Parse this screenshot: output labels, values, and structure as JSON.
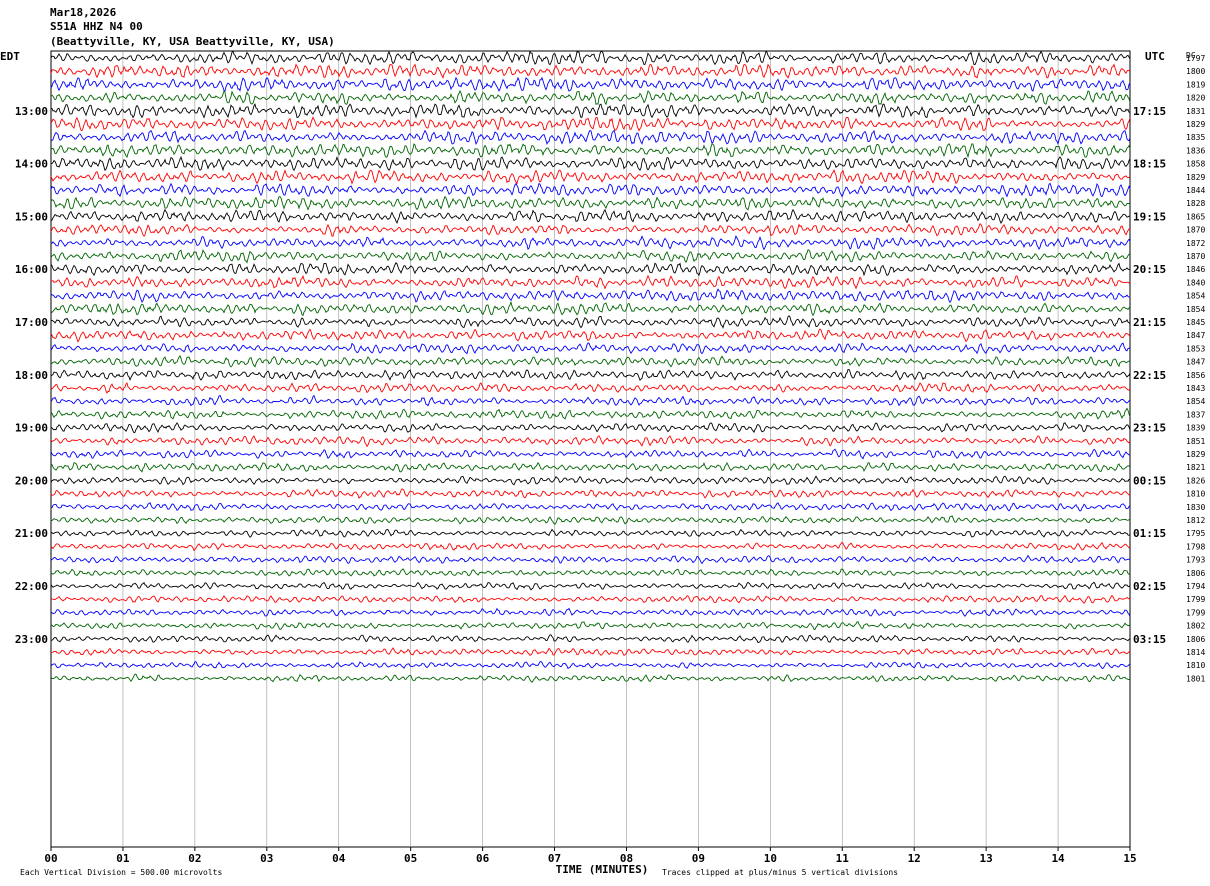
{
  "header": {
    "date": "Mar18,2026",
    "station": "S51A HHZ N4 00",
    "location": "(Beattyville, KY, USA Beattyville, KY, USA)"
  },
  "left_tz": "EDT",
  "right_tz": "UTC",
  "dc_label": "DC",
  "footer": {
    "scale": "Each Vertical Division =  500.00 microvolts",
    "xlabel": "TIME (MINUTES)",
    "clip": "Traces clipped at plus/minus 5 vertical divisions"
  },
  "colors": {
    "black": "#000000",
    "red": "#ff0000",
    "blue": "#0000ff",
    "green": "#006400",
    "grid": "#999999"
  },
  "chart_data": {
    "type": "line",
    "title": "S51A HHZ N4 00",
    "xlabel": "TIME (MINUTES)",
    "xlim": [
      0,
      15
    ],
    "x_ticks": [
      "00",
      "01",
      "02",
      "03",
      "04",
      "05",
      "06",
      "07",
      "08",
      "09",
      "10",
      "11",
      "12",
      "13",
      "14",
      "15"
    ],
    "left_hour_labels": [
      "13:00",
      "14:00",
      "15:00",
      "16:00",
      "17:00",
      "18:00",
      "19:00",
      "20:00",
      "21:00",
      "22:00",
      "23:00"
    ],
    "right_hour_labels": [
      "17:15",
      "18:15",
      "19:15",
      "20:15",
      "21:15",
      "22:15",
      "23:15",
      "00:15",
      "01:15",
      "02:15",
      "03:15"
    ],
    "trace_count": 48,
    "trace_color_cycle": [
      "black",
      "red",
      "blue",
      "green"
    ],
    "dc_offsets": [
      "1797",
      "1800",
      "1819",
      "1820",
      "1831",
      "1829",
      "1835",
      "1836",
      "1858",
      "1829",
      "1844",
      "1828",
      "1865",
      "1870",
      "1872",
      "1870",
      "1846",
      "1840",
      "1854",
      "1854",
      "1845",
      "1847",
      "1853",
      "1847",
      "1856",
      "1843",
      "1854",
      "1837",
      "1839",
      "1851",
      "1829",
      "1821",
      "1826",
      "1810",
      "1830",
      "1812",
      "1795",
      "1798",
      "1793",
      "1806",
      "1794",
      "1799",
      "1799",
      "1802",
      "1806",
      "1814",
      "1810",
      "1801"
    ],
    "amplitude_envelope": [
      3.0,
      3.0,
      3.0,
      3.0,
      3.0,
      3.0,
      3.0,
      3.0,
      2.8,
      2.8,
      2.8,
      2.8,
      2.6,
      2.6,
      2.6,
      2.6,
      2.5,
      2.5,
      2.5,
      2.5,
      2.3,
      2.3,
      2.2,
      2.2,
      2.1,
      2.0,
      2.0,
      2.0,
      1.9,
      1.9,
      1.9,
      1.8,
      1.7,
      1.7,
      1.6,
      1.6,
      1.5,
      1.5,
      1.5,
      1.5,
      1.5,
      1.5,
      1.5,
      1.5,
      1.5,
      1.5,
      1.5,
      1.5
    ]
  }
}
